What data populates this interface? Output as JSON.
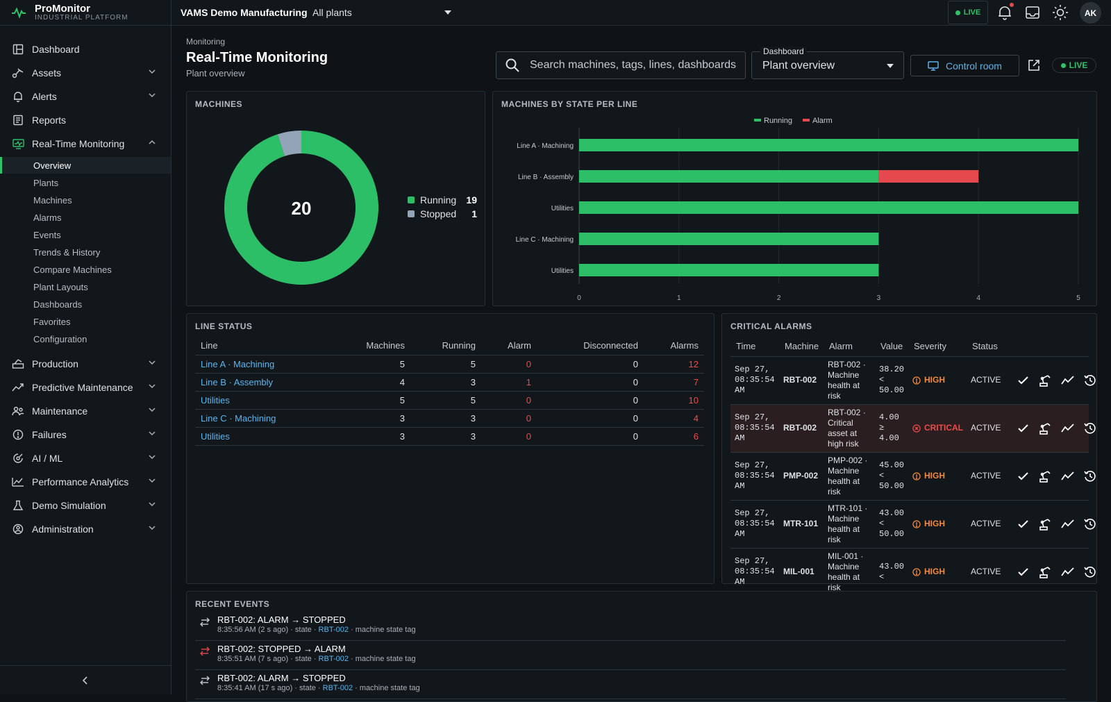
{
  "brand": {
    "title": "ProMonitor",
    "subtitle": "INDUSTRIAL PLATFORM"
  },
  "sidebar": {
    "items": [
      {
        "label": "Dashboard",
        "icon": "dashboard-icon"
      },
      {
        "label": "Assets",
        "icon": "assets-icon"
      },
      {
        "label": "Alerts",
        "icon": "bell-icon"
      },
      {
        "label": "Reports",
        "icon": "reports-icon"
      },
      {
        "label": "Real-Time Monitoring",
        "icon": "monitor-icon"
      },
      {
        "label": "Production",
        "icon": "production-icon"
      },
      {
        "label": "Predictive Maintenance",
        "icon": "trend-icon"
      },
      {
        "label": "Maintenance",
        "icon": "people-icon"
      },
      {
        "label": "Failures",
        "icon": "warning-icon"
      },
      {
        "label": "AI / ML",
        "icon": "ai-icon"
      },
      {
        "label": "Performance Analytics",
        "icon": "analytics-icon"
      },
      {
        "label": "Demo Simulation",
        "icon": "flask-icon"
      },
      {
        "label": "Administration",
        "icon": "admin-icon"
      }
    ],
    "monitoring_subitems": [
      "Overview",
      "Plants",
      "Machines",
      "Alarms",
      "Events",
      "Trends & History",
      "Compare Machines",
      "Plant Layouts",
      "Dashboards",
      "Favorites",
      "Configuration"
    ],
    "active_subitem": "Overview"
  },
  "topbar": {
    "org": "VAMS Demo Manufacturing",
    "plant_select": "All plants",
    "live": "LIVE",
    "avatar": "AK"
  },
  "header": {
    "breadcrumb": "Monitoring",
    "title": "Real-Time Monitoring",
    "subtitle": "Plant overview",
    "search_placeholder": "Search machines, tags, lines, dashboards",
    "dashboard_label": "Dashboard",
    "dashboard_value": "Plant overview",
    "control_room": "Control room",
    "live": "LIVE"
  },
  "colors": {
    "running": "#2dbe68",
    "stopped": "#93a4b8",
    "alarm": "#e5484d",
    "link": "#5ab5ef",
    "high": "#f5893b"
  },
  "machines_panel": {
    "title": "MACHINES",
    "total": "20",
    "legend": [
      {
        "label": "Running",
        "value": "19"
      },
      {
        "label": "Stopped",
        "value": "1"
      }
    ]
  },
  "chart_data": {
    "type": "bar",
    "title": "MACHINES BY STATE PER LINE",
    "orientation": "horizontal",
    "stacked": true,
    "categories": [
      "Line A · Machining",
      "Line B · Assembly",
      "Utilities",
      "Line C · Machining",
      "Utilities"
    ],
    "series": [
      {
        "name": "Running",
        "values": [
          5,
          3,
          5,
          3,
          3
        ]
      },
      {
        "name": "Alarm",
        "values": [
          0,
          1,
          0,
          0,
          0
        ]
      }
    ],
    "xlim": [
      0,
      5
    ],
    "xticks": [
      "0",
      "1",
      "2",
      "3",
      "4",
      "5"
    ],
    "legend": "top-center",
    "grid": true
  },
  "machines_donut": {
    "type": "pie",
    "categories": [
      "Running",
      "Stopped"
    ],
    "values": [
      19,
      1
    ]
  },
  "line_status": {
    "title": "LINE STATUS",
    "columns": [
      "Line",
      "Machines",
      "Running",
      "Alarm",
      "Disconnected",
      "Alarms"
    ],
    "rows": [
      {
        "line": "Line A · Machining",
        "machines": "5",
        "running": "5",
        "alarm": "0",
        "disconnected": "0",
        "alarms": "12"
      },
      {
        "line": "Line B · Assembly",
        "machines": "4",
        "running": "3",
        "alarm": "1",
        "disconnected": "0",
        "alarms": "7"
      },
      {
        "line": "Utilities",
        "machines": "5",
        "running": "5",
        "alarm": "0",
        "disconnected": "0",
        "alarms": "10"
      },
      {
        "line": "Line C · Machining",
        "machines": "3",
        "running": "3",
        "alarm": "0",
        "disconnected": "0",
        "alarms": "4"
      },
      {
        "line": "Utilities",
        "machines": "3",
        "running": "3",
        "alarm": "0",
        "disconnected": "0",
        "alarms": "6"
      }
    ]
  },
  "critical_alarms": {
    "title": "CRITICAL ALARMS",
    "columns": [
      "Time",
      "Machine",
      "Alarm",
      "Value",
      "Severity",
      "Status"
    ],
    "rows": [
      {
        "time": "Sep 27, 08:35:54 AM",
        "machine": "RBT-002",
        "alarm": "RBT-002 · Machine health at risk",
        "value": "38.20 < 50.00",
        "severity": "HIGH",
        "status": "ACTIVE"
      },
      {
        "time": "Sep 27, 08:35:54 AM",
        "machine": "RBT-002",
        "alarm": "RBT-002 · Critical asset at high risk",
        "value": "4.00 ≥ 4.00",
        "severity": "CRITICAL",
        "status": "ACTIVE"
      },
      {
        "time": "Sep 27, 08:35:54 AM",
        "machine": "PMP-002",
        "alarm": "PMP-002 · Machine health at risk",
        "value": "45.00 < 50.00",
        "severity": "HIGH",
        "status": "ACTIVE"
      },
      {
        "time": "Sep 27, 08:35:54 AM",
        "machine": "MTR-101",
        "alarm": "MTR-101 · Machine health at risk",
        "value": "43.00 < 50.00",
        "severity": "HIGH",
        "status": "ACTIVE"
      },
      {
        "time": "Sep 27, 08:35:54 AM",
        "machine": "MIL-001",
        "alarm": "MIL-001 · Machine health at risk",
        "value": "43.00 <",
        "severity": "HIGH",
        "status": "ACTIVE"
      }
    ]
  },
  "recent_events": {
    "title": "RECENT EVENTS",
    "items": [
      {
        "title": "RBT-002: ALARM → STOPPED",
        "time": "8:35:56 AM (2 s ago)",
        "kind": "state",
        "machine": "RBT-002",
        "tag": "machine state tag",
        "icon_color": "#c6ccd1"
      },
      {
        "title": "RBT-002: STOPPED → ALARM",
        "time": "8:35:51 AM (7 s ago)",
        "kind": "state",
        "machine": "RBT-002",
        "tag": "machine state tag",
        "icon_color": "#e5484d"
      },
      {
        "title": "RBT-002: ALARM → STOPPED",
        "time": "8:35:41 AM (17 s ago)",
        "kind": "state",
        "machine": "RBT-002",
        "tag": "machine state tag",
        "icon_color": "#c6ccd1"
      }
    ]
  }
}
